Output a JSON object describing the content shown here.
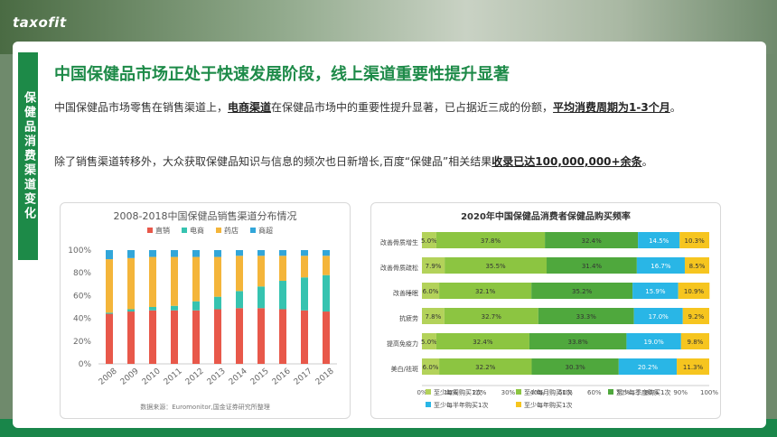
{
  "brand": {
    "logo": "taxofit"
  },
  "side_label": "保健品消费渠道变化",
  "title": "中国保健品市场正处于快速发展阶段，线上渠道重要性提升显著",
  "para1": {
    "a": "中国保健品市场零售在销售渠道上，",
    "b": "电商渠道",
    "c": "在保健品市场中的重要性提升显著，已占据近三成的份额，",
    "d": "平均消费周期为1-3个月",
    "e": "。"
  },
  "para2": {
    "a": "除了销售渠道转移外，大众获取保健品知识与信息的频次也日新增长,百度“保健品”相关结果",
    "b": "收录已达100,000,000+余条",
    "c": "。"
  },
  "colors": {
    "accent": "#1d8a48"
  },
  "chart_data": [
    {
      "type": "bar",
      "stacked": true,
      "title": "2008-2018中国保健品销售渠道分布情况",
      "categories": [
        "2008",
        "2009",
        "2010",
        "2011",
        "2012",
        "2013",
        "2014",
        "2015",
        "2016",
        "2017",
        "2018"
      ],
      "ylim": [
        0,
        100
      ],
      "yticks": [
        "0%",
        "20%",
        "40%",
        "60%",
        "80%",
        "100%"
      ],
      "legend_position": "top",
      "series": [
        {
          "name": "直销",
          "color": "#e8584a",
          "values": [
            44,
            46,
            47,
            47,
            47,
            48,
            49,
            49,
            48,
            47,
            46
          ]
        },
        {
          "name": "电商",
          "color": "#36c3b0",
          "values": [
            1,
            2,
            3,
            4,
            8,
            11,
            15,
            19,
            25,
            29,
            32
          ]
        },
        {
          "name": "药店",
          "color": "#f4b53a",
          "values": [
            47,
            45,
            44,
            43,
            39,
            35,
            31,
            27,
            22,
            19,
            17
          ]
        },
        {
          "name": "商超",
          "color": "#32a6d9",
          "values": [
            8,
            7,
            6,
            6,
            6,
            6,
            5,
            5,
            5,
            5,
            5
          ]
        }
      ],
      "source": "数据来源：Euromonitor,国金证券研究所整理"
    },
    {
      "type": "bar",
      "orientation": "horizontal",
      "stacked": true,
      "title": "2020年中国保健品消费者保健品购买频率",
      "categories": [
        "改善骨质增生",
        "改善骨质疏松",
        "改善睡眠",
        "抗疲劳",
        "提高免疫力",
        "美白/祛斑"
      ],
      "xlim": [
        0,
        100
      ],
      "xticks": [
        "0%",
        "10%",
        "20%",
        "30%",
        "40%",
        "50%",
        "60%",
        "70%",
        "80%",
        "90%",
        "100%"
      ],
      "legend_position": "bottom",
      "series": [
        {
          "name": "至少每周购买1次",
          "color": "#b3d25a",
          "values": [
            5.0,
            7.9,
            6.0,
            7.8,
            5.0,
            6.0
          ],
          "labels": [
            "5.0%",
            "7.9%",
            "6.0%",
            "7.8%",
            "5.0%",
            "6.0%"
          ]
        },
        {
          "name": "至少每月购买1次",
          "color": "#8cc541",
          "values": [
            37.8,
            35.5,
            32.1,
            32.7,
            32.4,
            32.2
          ],
          "labels": [
            "37.8%",
            "35.5%",
            "32.1%",
            "32.7%",
            "32.4%",
            "32.2%"
          ]
        },
        {
          "name": "至少每季度购买1次",
          "color": "#4fa83d",
          "values": [
            32.4,
            31.4,
            35.2,
            33.3,
            33.8,
            30.3
          ],
          "labels": [
            "32.4%",
            "31.4%",
            "35.2%",
            "33.3%",
            "33.8%",
            "30.3%"
          ]
        },
        {
          "name": "至少每半年购买1次",
          "color": "#29b6e6",
          "values": [
            14.5,
            16.7,
            15.9,
            17.0,
            19.0,
            20.2
          ],
          "labels": [
            "14.5%",
            "16.7%",
            "15.9%",
            "17.0%",
            "19.0%",
            "20.2%"
          ]
        },
        {
          "name": "至少每年购买1次",
          "color": "#f6c51f",
          "values": [
            10.3,
            8.5,
            10.9,
            9.2,
            9.8,
            11.3
          ],
          "labels": [
            "10.3%",
            "8.5%",
            "10.9%",
            "9.2%",
            "9.8%",
            "11.3%"
          ]
        }
      ]
    }
  ]
}
